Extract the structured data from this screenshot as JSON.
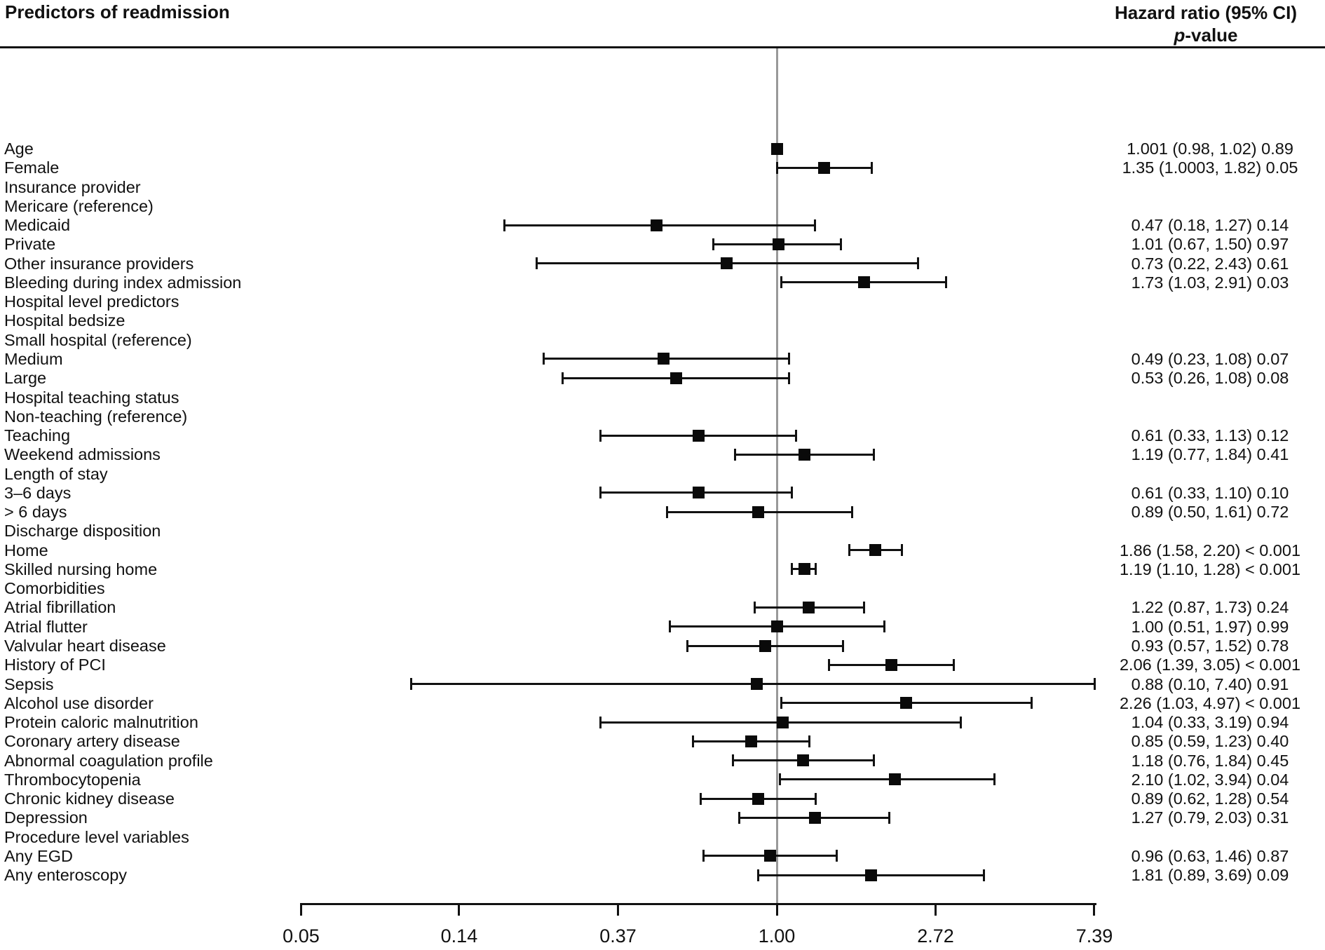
{
  "chart_data": {
    "type": "scatter",
    "subtype": "forest-plot",
    "title_left": "Predictors of readmission",
    "title_right": "Hazard ratio (95% CI)",
    "title_right_p_italic": "p",
    "title_right_p_rest": "-value",
    "x_scale": "natural-log",
    "xlim": [
      0.05,
      7.39
    ],
    "reference_line": 1.0,
    "grid": false,
    "marker_color": "#0a0a0a",
    "reference_line_color": "#999999",
    "x_ticks": [
      {
        "value": 0.05,
        "label": "0.05"
      },
      {
        "value": 0.1353,
        "label": "0.14"
      },
      {
        "value": 0.3679,
        "label": "0.37"
      },
      {
        "value": 1.0,
        "label": "1.00"
      },
      {
        "value": 2.7183,
        "label": "2.72"
      },
      {
        "value": 7.389,
        "label": "7.39"
      }
    ],
    "rows": [
      {
        "label": "Age",
        "hr": 1.001,
        "lo": 0.98,
        "hi": 1.02,
        "display": "1.001 (0.98, 1.02) 0.89"
      },
      {
        "label": "Female",
        "hr": 1.35,
        "lo": 1.0003,
        "hi": 1.82,
        "display": "1.35 (1.0003, 1.82) 0.05"
      },
      {
        "label": "Insurance provider"
      },
      {
        "label": "Mericare (reference)"
      },
      {
        "label": "Medicaid",
        "hr": 0.47,
        "lo": 0.18,
        "hi": 1.27,
        "display": "0.47 (0.18, 1.27) 0.14"
      },
      {
        "label": "Private",
        "hr": 1.01,
        "lo": 0.67,
        "hi": 1.5,
        "display": "1.01 (0.67, 1.50) 0.97"
      },
      {
        "label": "Other insurance providers",
        "hr": 0.73,
        "lo": 0.22,
        "hi": 2.43,
        "display": "0.73 (0.22, 2.43) 0.61"
      },
      {
        "label": "Bleeding during index admission",
        "hr": 1.73,
        "lo": 1.03,
        "hi": 2.91,
        "display": "1.73 (1.03, 2.91) 0.03"
      },
      {
        "label": "Hospital level predictors"
      },
      {
        "label": "Hospital bedsize"
      },
      {
        "label": "Small hospital (reference)"
      },
      {
        "label": "Medium",
        "hr": 0.49,
        "lo": 0.23,
        "hi": 1.08,
        "display": "0.49 (0.23, 1.08) 0.07"
      },
      {
        "label": "Large",
        "hr": 0.53,
        "lo": 0.26,
        "hi": 1.08,
        "display": "0.53 (0.26, 1.08) 0.08"
      },
      {
        "label": "Hospital teaching status"
      },
      {
        "label": "Non-teaching (reference)"
      },
      {
        "label": "Teaching",
        "hr": 0.61,
        "lo": 0.33,
        "hi": 1.13,
        "display": "0.61 (0.33, 1.13) 0.12"
      },
      {
        "label": "Weekend admissions",
        "hr": 1.19,
        "lo": 0.77,
        "hi": 1.84,
        "display": "1.19 (0.77, 1.84) 0.41"
      },
      {
        "label": "Length of stay"
      },
      {
        "label": "3–6 days",
        "hr": 0.61,
        "lo": 0.33,
        "hi": 1.1,
        "display": "0.61 (0.33, 1.10) 0.10"
      },
      {
        "label": "> 6 days",
        "hr": 0.89,
        "lo": 0.5,
        "hi": 1.61,
        "display": "0.89 (0.50, 1.61) 0.72"
      },
      {
        "label": "Discharge disposition"
      },
      {
        "label": "Home",
        "hr": 1.86,
        "lo": 1.58,
        "hi": 2.2,
        "display": "1.86 (1.58, 2.20) < 0.001"
      },
      {
        "label": "Skilled nursing home",
        "hr": 1.19,
        "lo": 1.1,
        "hi": 1.28,
        "display": "1.19 (1.10, 1.28) < 0.001"
      },
      {
        "label": "Comorbidities"
      },
      {
        "label": "Atrial fibrillation",
        "hr": 1.22,
        "lo": 0.87,
        "hi": 1.73,
        "display": "1.22 (0.87, 1.73) 0.24"
      },
      {
        "label": "Atrial flutter",
        "hr": 1.0,
        "lo": 0.51,
        "hi": 1.97,
        "display": "1.00 (0.51, 1.97) 0.99"
      },
      {
        "label": "Valvular heart disease",
        "hr": 0.93,
        "lo": 0.57,
        "hi": 1.52,
        "display": "0.93 (0.57, 1.52) 0.78"
      },
      {
        "label": "History of PCI",
        "hr": 2.06,
        "lo": 1.39,
        "hi": 3.05,
        "display": "2.06 (1.39, 3.05) < 0.001"
      },
      {
        "label": "Sepsis",
        "hr": 0.88,
        "lo": 0.1,
        "hi": 7.4,
        "display": "0.88 (0.10, 7.40) 0.91"
      },
      {
        "label": "Alcohol use disorder",
        "hr": 2.26,
        "lo": 1.03,
        "hi": 4.97,
        "display": "2.26 (1.03, 4.97) < 0.001"
      },
      {
        "label": "Protein caloric malnutrition",
        "hr": 1.04,
        "lo": 0.33,
        "hi": 3.19,
        "display": "1.04 (0.33, 3.19) 0.94"
      },
      {
        "label": "Coronary artery disease",
        "hr": 0.85,
        "lo": 0.59,
        "hi": 1.23,
        "display": "0.85 (0.59, 1.23) 0.40"
      },
      {
        "label": "Abnormal coagulation profile",
        "hr": 1.18,
        "lo": 0.76,
        "hi": 1.84,
        "display": "1.18 (0.76, 1.84) 0.45"
      },
      {
        "label": "Thrombocytopenia",
        "hr": 2.1,
        "lo": 1.02,
        "hi": 3.94,
        "display": "2.10 (1.02, 3.94) 0.04"
      },
      {
        "label": "Chronic kidney disease",
        "hr": 0.89,
        "lo": 0.62,
        "hi": 1.28,
        "display": "0.89 (0.62, 1.28) 0.54"
      },
      {
        "label": "Depression",
        "hr": 1.27,
        "lo": 0.79,
        "hi": 2.03,
        "display": "1.27 (0.79, 2.03) 0.31"
      },
      {
        "label": "Procedure level variables"
      },
      {
        "label": "Any EGD",
        "hr": 0.96,
        "lo": 0.63,
        "hi": 1.46,
        "display": "0.96 (0.63, 1.46) 0.87"
      },
      {
        "label": "Any enteroscopy",
        "hr": 1.81,
        "lo": 0.89,
        "hi": 3.69,
        "display": "1.81 (0.89, 3.69) 0.09"
      }
    ]
  }
}
